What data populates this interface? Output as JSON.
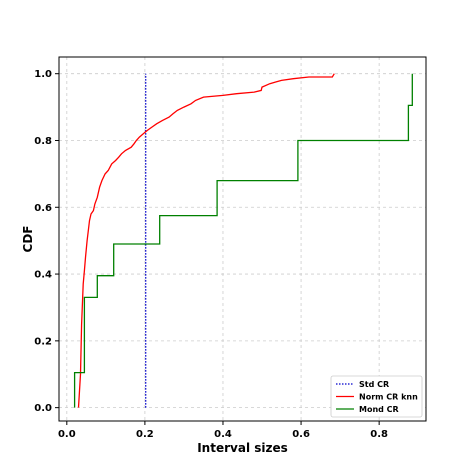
{
  "chart_data": {
    "type": "line",
    "title": "",
    "xlabel": "Interval sizes",
    "ylabel": "CDF",
    "xlim": [
      -0.02,
      0.92
    ],
    "ylim": [
      -0.04,
      1.05
    ],
    "x_ticks": [
      {
        "value": 0.0,
        "label": "0.0"
      },
      {
        "value": 0.2,
        "label": "0.2"
      },
      {
        "value": 0.4,
        "label": "0.4"
      },
      {
        "value": 0.6,
        "label": "0.6"
      },
      {
        "value": 0.8,
        "label": "0.8"
      }
    ],
    "y_ticks": [
      {
        "value": 0.0,
        "label": "0.0"
      },
      {
        "value": 0.2,
        "label": "0.2"
      },
      {
        "value": 0.4,
        "label": "0.4"
      },
      {
        "value": 0.6,
        "label": "0.6"
      },
      {
        "value": 0.8,
        "label": "0.8"
      },
      {
        "value": 1.0,
        "label": "1.0"
      }
    ],
    "grid": true,
    "legend": "bottom-right",
    "series": [
      {
        "name": "Std CR",
        "color": "#0000cc",
        "style": "dotted",
        "points": [
          [
            0.202,
            0.0
          ],
          [
            0.202,
            1.0
          ]
        ]
      },
      {
        "name": "Norm CR knn",
        "color": "#ff0000",
        "style": "solid",
        "points": [
          [
            0.03,
            0.0
          ],
          [
            0.035,
            0.1
          ],
          [
            0.038,
            0.25
          ],
          [
            0.042,
            0.37
          ],
          [
            0.045,
            0.41
          ],
          [
            0.048,
            0.45
          ],
          [
            0.052,
            0.5
          ],
          [
            0.055,
            0.53
          ],
          [
            0.058,
            0.56
          ],
          [
            0.062,
            0.58
          ],
          [
            0.068,
            0.59
          ],
          [
            0.072,
            0.61
          ],
          [
            0.078,
            0.63
          ],
          [
            0.084,
            0.66
          ],
          [
            0.09,
            0.68
          ],
          [
            0.098,
            0.7
          ],
          [
            0.106,
            0.71
          ],
          [
            0.115,
            0.73
          ],
          [
            0.125,
            0.74
          ],
          [
            0.133,
            0.75
          ],
          [
            0.14,
            0.76
          ],
          [
            0.15,
            0.77
          ],
          [
            0.165,
            0.78
          ],
          [
            0.172,
            0.79
          ],
          [
            0.178,
            0.8
          ],
          [
            0.186,
            0.81
          ],
          [
            0.196,
            0.82
          ],
          [
            0.206,
            0.83
          ],
          [
            0.218,
            0.84
          ],
          [
            0.23,
            0.85
          ],
          [
            0.245,
            0.86
          ],
          [
            0.262,
            0.87
          ],
          [
            0.272,
            0.88
          ],
          [
            0.283,
            0.89
          ],
          [
            0.3,
            0.9
          ],
          [
            0.318,
            0.91
          ],
          [
            0.33,
            0.92
          ],
          [
            0.35,
            0.93
          ],
          [
            0.4,
            0.935
          ],
          [
            0.435,
            0.94
          ],
          [
            0.48,
            0.945
          ],
          [
            0.498,
            0.95
          ],
          [
            0.5,
            0.96
          ],
          [
            0.52,
            0.97
          ],
          [
            0.535,
            0.975
          ],
          [
            0.55,
            0.98
          ],
          [
            0.58,
            0.985
          ],
          [
            0.62,
            0.99
          ],
          [
            0.68,
            0.99
          ],
          [
            0.685,
            1.0
          ]
        ]
      },
      {
        "name": "Mond CR",
        "color": "#008000",
        "style": "step",
        "points": [
          [
            0.02,
            0.0
          ],
          [
            0.02,
            0.105
          ],
          [
            0.045,
            0.105
          ],
          [
            0.045,
            0.33
          ],
          [
            0.078,
            0.33
          ],
          [
            0.078,
            0.395
          ],
          [
            0.12,
            0.395
          ],
          [
            0.12,
            0.49
          ],
          [
            0.238,
            0.49
          ],
          [
            0.238,
            0.575
          ],
          [
            0.385,
            0.575
          ],
          [
            0.385,
            0.68
          ],
          [
            0.592,
            0.68
          ],
          [
            0.592,
            0.8
          ],
          [
            0.875,
            0.8
          ],
          [
            0.875,
            0.905
          ],
          [
            0.885,
            0.905
          ],
          [
            0.885,
            1.0
          ]
        ]
      }
    ]
  }
}
